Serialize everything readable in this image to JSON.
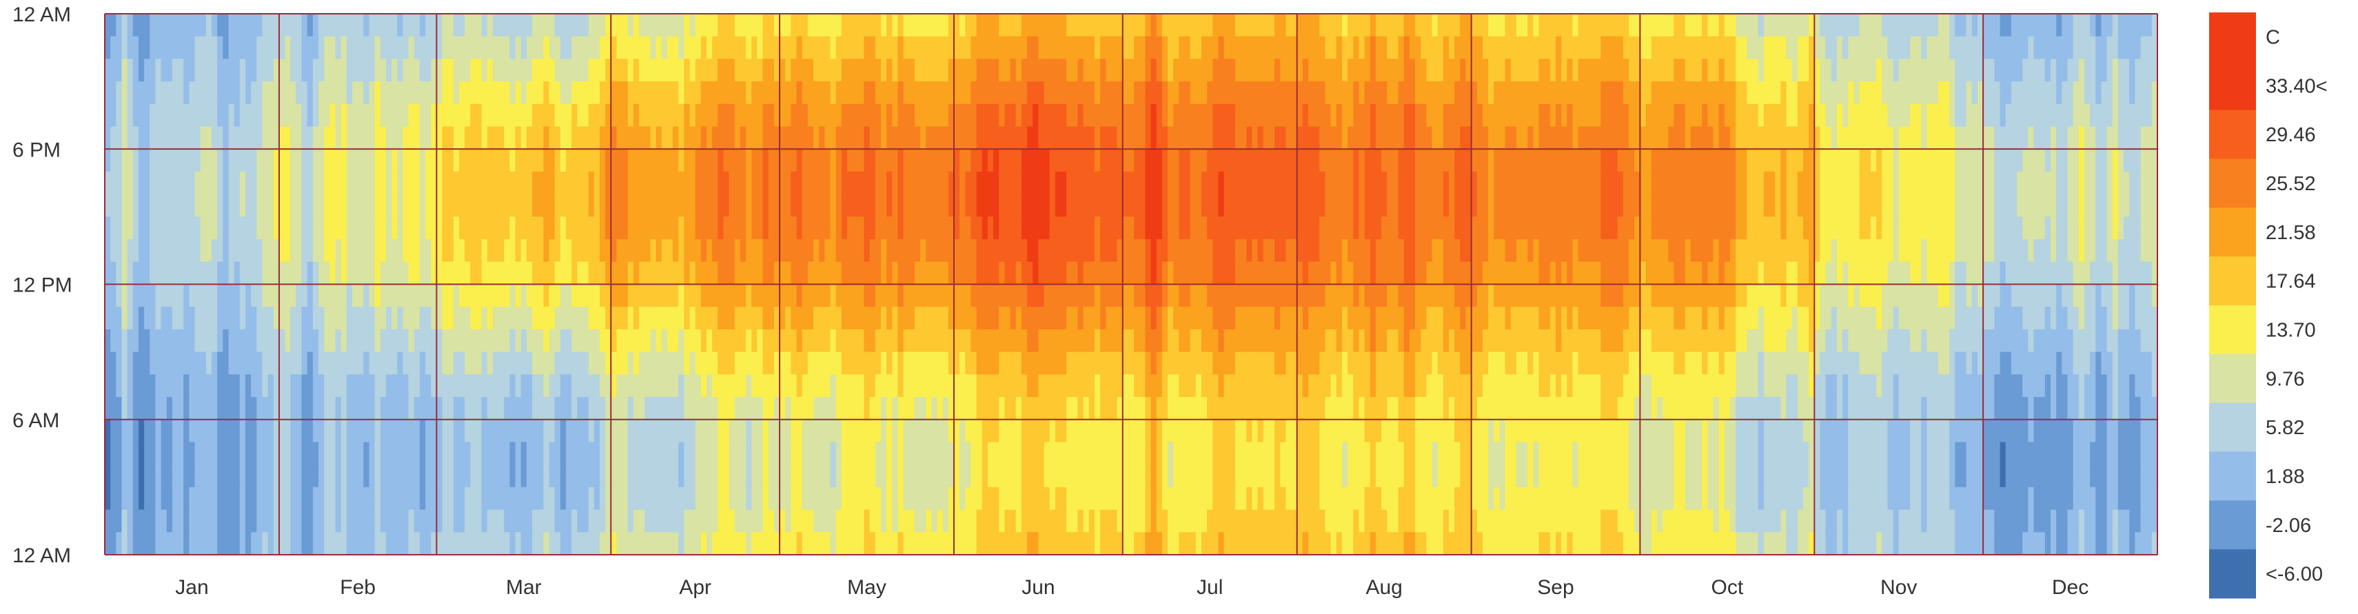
{
  "chart_data": {
    "type": "heatmap",
    "title": "",
    "xlabel": "",
    "ylabel": "",
    "x_tick_labels": [
      "Jan",
      "Feb",
      "Mar",
      "Apr",
      "May",
      "Jun",
      "Jul",
      "Aug",
      "Sep",
      "Oct",
      "Nov",
      "Dec"
    ],
    "y_tick_labels": [
      "12 AM",
      "6 PM",
      "12 PM",
      "6 AM",
      "12 AM"
    ],
    "y_range_hours": [
      24,
      0
    ],
    "unit": "C",
    "legend": {
      "unit_label": "C",
      "placement": "right",
      "labels": [
        "33.40<",
        "29.46",
        "25.52",
        "21.58",
        "17.64",
        "13.70",
        "9.76",
        "5.82",
        "1.88",
        "-2.06",
        "<-6.00"
      ],
      "bins": [
        {
          "min": 33.4,
          "color": "#f03c14"
        },
        {
          "min": 29.46,
          "max": 33.4,
          "color": "#f6601c"
        },
        {
          "min": 25.52,
          "max": 29.46,
          "color": "#f9801e"
        },
        {
          "min": 21.58,
          "max": 25.52,
          "color": "#fba21e"
        },
        {
          "min": 17.64,
          "max": 21.58,
          "color": "#fdc830"
        },
        {
          "min": 13.7,
          "max": 17.64,
          "color": "#fbef4e"
        },
        {
          "min": 9.76,
          "max": 13.7,
          "color": "#d8e3a4"
        },
        {
          "min": 5.82,
          "max": 9.76,
          "color": "#b5d3e0"
        },
        {
          "min": 1.88,
          "max": 5.82,
          "color": "#94bde9"
        },
        {
          "min": -2.06,
          "max": 1.88,
          "color": "#6a9bd4"
        },
        {
          "max": -6.0,
          "color": "#3e6fae"
        }
      ]
    },
    "monthly_temperature_profile_C": [
      {
        "month": "Jan",
        "min": 2,
        "max": 9
      },
      {
        "month": "Feb",
        "min": 2,
        "max": 12
      },
      {
        "month": "Mar",
        "min": 5,
        "max": 22
      },
      {
        "month": "Apr",
        "min": 9,
        "max": 25
      },
      {
        "month": "May",
        "min": 13,
        "max": 29
      },
      {
        "month": "Jun",
        "min": 17,
        "max": 34
      },
      {
        "month": "Jul",
        "min": 19,
        "max": 33
      },
      {
        "month": "Aug",
        "min": 18,
        "max": 31
      },
      {
        "month": "Sep",
        "min": 15,
        "max": 28
      },
      {
        "month": "Oct",
        "min": 10,
        "max": 25
      },
      {
        "month": "Nov",
        "min": 5,
        "max": 15
      },
      {
        "month": "Dec",
        "min": 0,
        "max": 10
      }
    ],
    "peak_hour": 16,
    "grid": true,
    "grid_color": "#9a2a3a"
  }
}
